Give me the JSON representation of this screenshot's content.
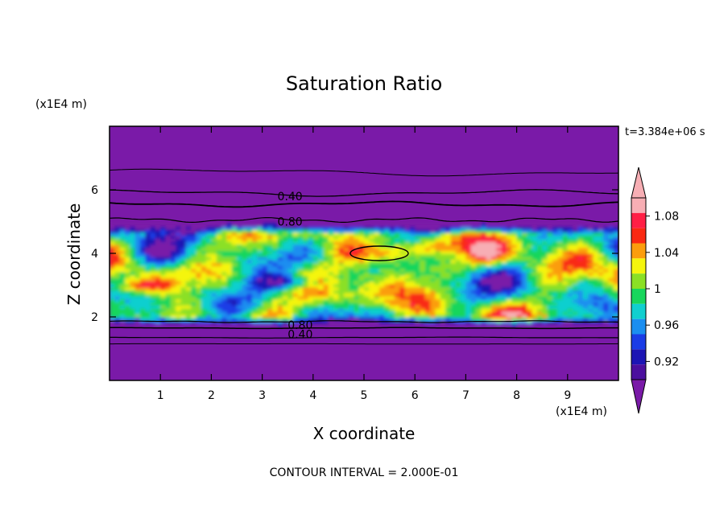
{
  "chart_data": {
    "type": "heatmap",
    "title": "Saturation Ratio",
    "xlabel": "X coordinate",
    "ylabel": "Z coordinate",
    "x_unit": "(x1E4 m)",
    "y_unit": "(x1E4 m)",
    "time_label": "t=3.384e+06 s",
    "footer": "CONTOUR INTERVAL = 2.000E-01",
    "xlim": [
      0,
      10
    ],
    "ylim": [
      0,
      8
    ],
    "x_ticks": [
      "1",
      "2",
      "3",
      "4",
      "5",
      "6",
      "7",
      "8",
      "9"
    ],
    "y_ticks": [
      "2",
      "4",
      "6"
    ],
    "colorbar": {
      "levels": [
        0.9,
        0.92,
        0.94,
        0.96,
        0.98,
        1.0,
        1.02,
        1.04,
        1.06,
        1.08,
        1.1
      ],
      "tick_labels": [
        "0.92",
        "0.96",
        "1",
        "1.04",
        "1.08"
      ],
      "colors": [
        "#4b0f9e",
        "#1c15b4",
        "#1a3ce6",
        "#1a8ef0",
        "#11cfcf",
        "#18d65c",
        "#8be025",
        "#f5f50d",
        "#fb9d0d",
        "#f92912",
        "#ff1f45",
        "#f7aeb4"
      ],
      "under_color": "#7a1aa8",
      "over_color": "#f7aeb4",
      "extend": "both"
    },
    "contour_labels": [
      {
        "text": "0.40",
        "x": 3.3,
        "z": 5.8
      },
      {
        "text": "0.80",
        "x": 3.3,
        "z": 5.0
      },
      {
        "text": "0.80",
        "x": 3.5,
        "z": 1.75
      },
      {
        "text": "0.40",
        "x": 3.5,
        "z": 1.45
      }
    ],
    "grid": false,
    "legend": "colorbar-right"
  }
}
